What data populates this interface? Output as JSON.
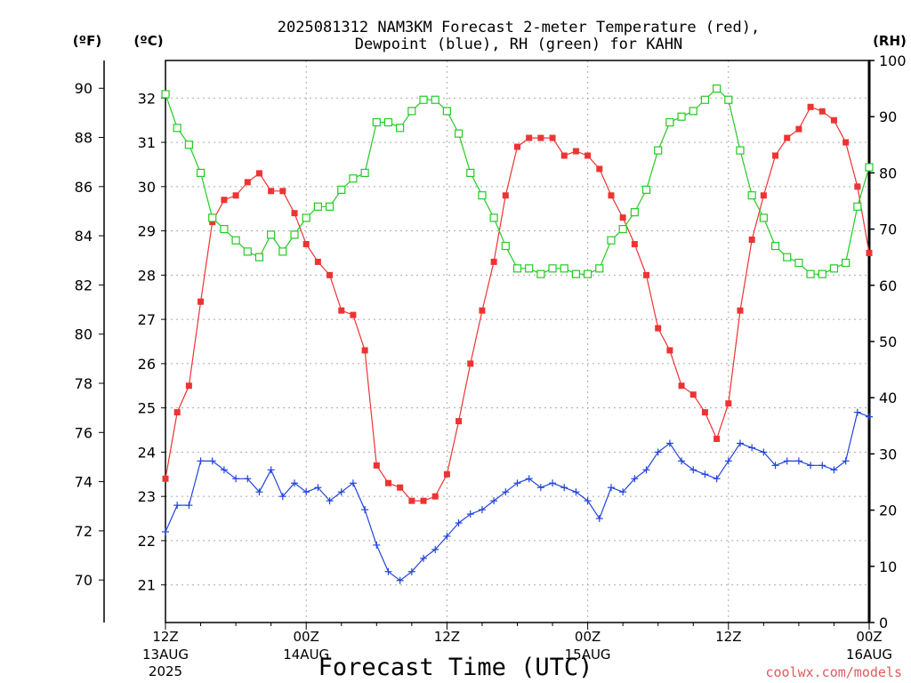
{
  "chart_data": {
    "type": "line",
    "title_line1": "2025081312 NAM3KM Forecast 2-meter Temperature (red),",
    "title_line2": "Dewpoint (blue), RH (green) for KAHN",
    "units": {
      "fahrenheit": "(ºF)",
      "celsius": "(ºC)",
      "rh": "(RH)"
    },
    "xlabel": "Forecast Time (UTC)",
    "credit": "coolwx.com/models",
    "x_range": [
      0,
      60
    ],
    "x_ticks": [
      {
        "x": 0,
        "label": "12Z",
        "sub": "13AUG",
        "sub2": "2025"
      },
      {
        "x": 12,
        "label": "00Z",
        "sub": "14AUG",
        "sub2": ""
      },
      {
        "x": 24,
        "label": "12Z",
        "sub": "",
        "sub2": ""
      },
      {
        "x": 36,
        "label": "00Z",
        "sub": "15AUG",
        "sub2": ""
      },
      {
        "x": 48,
        "label": "12Z",
        "sub": "",
        "sub2": ""
      },
      {
        "x": 60,
        "label": "00Z",
        "sub": "16AUG",
        "sub2": ""
      }
    ],
    "y_celsius_range": [
      20.15,
      32.85
    ],
    "y_celsius_ticks": [
      21,
      22,
      23,
      24,
      25,
      26,
      27,
      28,
      29,
      30,
      31,
      32
    ],
    "y_fahrenheit_ticks": [
      70,
      72,
      74,
      76,
      78,
      80,
      82,
      84,
      86,
      88,
      90
    ],
    "y_rh_range": [
      0,
      100
    ],
    "y_rh_ticks": [
      0,
      10,
      20,
      30,
      40,
      50,
      60,
      70,
      80,
      90,
      100
    ],
    "grid": true,
    "series": [
      {
        "name": "Temperature",
        "axis": "celsius",
        "color": "#ee3333",
        "marker": "filled-square",
        "values": [
          23.4,
          24.9,
          25.5,
          27.4,
          29.2,
          29.7,
          29.8,
          30.1,
          30.3,
          29.9,
          29.9,
          29.4,
          28.7,
          28.3,
          28.0,
          27.2,
          27.1,
          26.3,
          23.7,
          23.3,
          23.2,
          22.9,
          22.9,
          23.0,
          23.5,
          24.7,
          26.0,
          27.2,
          28.3,
          29.8,
          30.9,
          31.1,
          31.1,
          31.1,
          30.7,
          30.8,
          30.7,
          30.4,
          29.8,
          29.3,
          28.7,
          28.0,
          26.8,
          26.3,
          25.5,
          25.3,
          24.9,
          24.3,
          25.1,
          27.2,
          28.8,
          29.8,
          30.7,
          31.1,
          31.3,
          31.8,
          31.7,
          31.5,
          31.0,
          30.0,
          28.5
        ]
      },
      {
        "name": "Dewpoint",
        "axis": "celsius",
        "color": "#2244dd",
        "marker": "plus",
        "values": [
          22.2,
          22.8,
          22.8,
          23.8,
          23.8,
          23.6,
          23.4,
          23.4,
          23.1,
          23.6,
          23.0,
          23.3,
          23.1,
          23.2,
          22.9,
          23.1,
          23.3,
          22.7,
          21.9,
          21.3,
          21.1,
          21.3,
          21.6,
          21.8,
          22.1,
          22.4,
          22.6,
          22.7,
          22.9,
          23.1,
          23.3,
          23.4,
          23.2,
          23.3,
          23.2,
          23.1,
          22.9,
          22.5,
          23.2,
          23.1,
          23.4,
          23.6,
          24.0,
          24.2,
          23.8,
          23.6,
          23.5,
          23.4,
          23.8,
          24.2,
          24.1,
          24.0,
          23.7,
          23.8,
          23.8,
          23.7,
          23.7,
          23.6,
          23.8,
          24.9,
          24.8
        ]
      },
      {
        "name": "RH",
        "axis": "rh",
        "color": "#22cc22",
        "marker": "open-square",
        "values": [
          94,
          88,
          85,
          80,
          72,
          70,
          68,
          66,
          65,
          69,
          66,
          69,
          72,
          74,
          74,
          77,
          79,
          80,
          89,
          89,
          88,
          91,
          93,
          93,
          91,
          87,
          80,
          76,
          72,
          67,
          63,
          63,
          62,
          63,
          63,
          62,
          62,
          63,
          68,
          70,
          73,
          77,
          84,
          89,
          90,
          91,
          93,
          95,
          93,
          84,
          76,
          72,
          67,
          65,
          64,
          62,
          62,
          63,
          64,
          74,
          81
        ]
      }
    ]
  }
}
